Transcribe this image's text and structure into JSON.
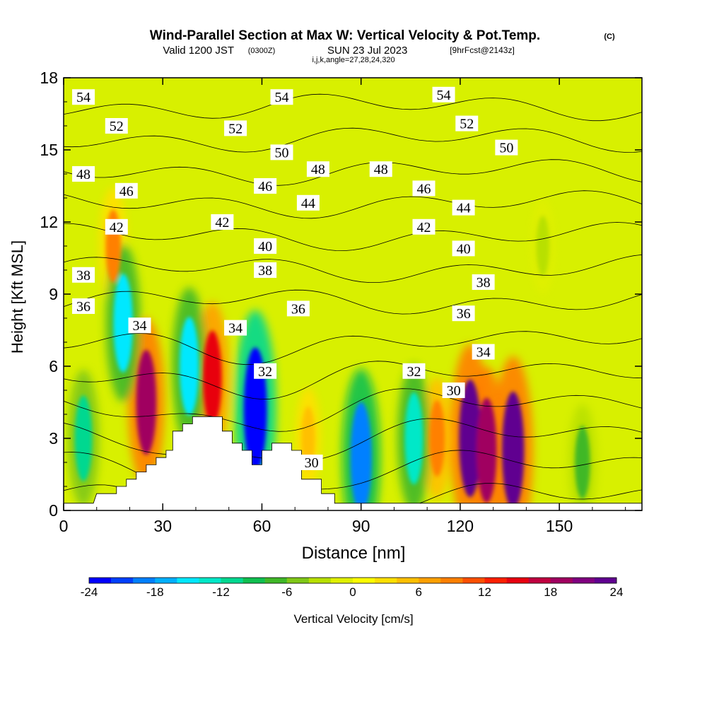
{
  "header": {
    "title": "Wind-Parallel Section at Max W: Vertical Velocity & Pot.Temp.",
    "title_unit": "(C)",
    "valid_prefix": "Valid 1200 JST",
    "valid_utc": "(0300Z)",
    "valid_date": "SUN 23 Jul 2023",
    "forecast": "[9hrFcst@2143z]",
    "indices": "i,j,k,angle=27,28,24,320"
  },
  "chart_data": {
    "type": "heatmap",
    "xlabel": "Distance [nm]",
    "ylabel": "Height [Kft MSL]",
    "xlim": [
      0,
      175
    ],
    "ylim": [
      0,
      18
    ],
    "x_ticks": [
      0,
      30,
      60,
      90,
      120,
      150
    ],
    "x_tick_labels": [
      "0",
      "30",
      "60",
      "90",
      "120",
      "150"
    ],
    "y_ticks": [
      0,
      3,
      6,
      9,
      12,
      15,
      18
    ],
    "y_tick_labels": [
      "0",
      "3",
      "6",
      "9",
      "12",
      "15",
      "18"
    ],
    "colorbar": {
      "label": "Vertical Velocity [cm/s]",
      "min": -24,
      "max": 24,
      "tick_values": [
        -24,
        -18,
        -12,
        -6,
        0,
        6,
        12,
        18,
        24
      ],
      "tick_labels": [
        "-24",
        "-18",
        "-12",
        "-6",
        "0",
        "6",
        "12",
        "18",
        "24"
      ],
      "colors": [
        "#0000ff",
        "#0040ff",
        "#0080ff",
        "#00b0ff",
        "#00e8ff",
        "#00e8c8",
        "#00d890",
        "#10c050",
        "#40b828",
        "#80c818",
        "#b8e000",
        "#e0f000",
        "#ffff00",
        "#ffe000",
        "#ffc000",
        "#ffa000",
        "#ff8000",
        "#ff5000",
        "#ff2000",
        "#e80010",
        "#c00040",
        "#a00060",
        "#800080",
        "#600090"
      ]
    },
    "updrafts_cm_s": [
      {
        "x": 25,
        "y": 4.5,
        "value": 18
      },
      {
        "x": 45,
        "y": 5.5,
        "value": 15
      },
      {
        "x": 15,
        "y": 11,
        "value": 8
      },
      {
        "x": 123,
        "y": 3,
        "value": 22
      },
      {
        "x": 128,
        "y": 2.5,
        "value": 18
      },
      {
        "x": 136,
        "y": 2.5,
        "value": 22
      },
      {
        "x": 113,
        "y": 3,
        "value": 9
      },
      {
        "x": 74,
        "y": 3,
        "value": 5
      }
    ],
    "downdrafts_cm_s": [
      {
        "x": 58,
        "y": 4.2,
        "value": -24
      },
      {
        "x": 90,
        "y": 2.2,
        "value": -20
      },
      {
        "x": 106,
        "y": 3,
        "value": -14
      },
      {
        "x": 38,
        "y": 6,
        "value": -16
      },
      {
        "x": 18,
        "y": 7.8,
        "value": -16
      },
      {
        "x": 6,
        "y": 3,
        "value": -12
      },
      {
        "x": 157,
        "y": 2,
        "value": -8
      },
      {
        "x": 145,
        "y": 11,
        "value": -4
      }
    ],
    "isentrope_labels": [
      {
        "text": "54",
        "x": 6,
        "y": 17.2
      },
      {
        "text": "54",
        "x": 66,
        "y": 17.2
      },
      {
        "text": "54",
        "x": 115,
        "y": 17.3
      },
      {
        "text": "52",
        "x": 16,
        "y": 16.0
      },
      {
        "text": "52",
        "x": 52,
        "y": 15.9
      },
      {
        "text": "52",
        "x": 122,
        "y": 16.1
      },
      {
        "text": "50",
        "x": 66,
        "y": 14.9
      },
      {
        "text": "50",
        "x": 134,
        "y": 15.1
      },
      {
        "text": "48",
        "x": 6,
        "y": 14.0
      },
      {
        "text": "48",
        "x": 77,
        "y": 14.2
      },
      {
        "text": "48",
        "x": 96,
        "y": 14.2
      },
      {
        "text": "46",
        "x": 19,
        "y": 13.3
      },
      {
        "text": "46",
        "x": 61,
        "y": 13.5
      },
      {
        "text": "46",
        "x": 109,
        "y": 13.4
      },
      {
        "text": "44",
        "x": 74,
        "y": 12.8
      },
      {
        "text": "44",
        "x": 121,
        "y": 12.6
      },
      {
        "text": "42",
        "x": 16,
        "y": 11.8
      },
      {
        "text": "42",
        "x": 48,
        "y": 12.0
      },
      {
        "text": "42",
        "x": 109,
        "y": 11.8
      },
      {
        "text": "40",
        "x": 61,
        "y": 11.0
      },
      {
        "text": "40",
        "x": 121,
        "y": 10.9
      },
      {
        "text": "38",
        "x": 6,
        "y": 9.8
      },
      {
        "text": "38",
        "x": 61,
        "y": 10.0
      },
      {
        "text": "38",
        "x": 127,
        "y": 9.5
      },
      {
        "text": "36",
        "x": 6,
        "y": 8.5
      },
      {
        "text": "36",
        "x": 71,
        "y": 8.4
      },
      {
        "text": "36",
        "x": 121,
        "y": 8.2
      },
      {
        "text": "34",
        "x": 23,
        "y": 7.7
      },
      {
        "text": "34",
        "x": 52,
        "y": 7.6
      },
      {
        "text": "34",
        "x": 127,
        "y": 6.6
      },
      {
        "text": "32",
        "x": 61,
        "y": 5.8
      },
      {
        "text": "32",
        "x": 106,
        "y": 5.8
      },
      {
        "text": "30",
        "x": 118,
        "y": 5.0
      },
      {
        "text": "30",
        "x": 75,
        "y": 2.0
      }
    ],
    "isentrope_values": [
      30,
      32,
      34,
      36,
      38,
      40,
      42,
      44,
      46,
      48,
      50,
      52,
      54
    ],
    "terrain_kft": [
      [
        0,
        0.3
      ],
      [
        9,
        0.3
      ],
      [
        10,
        0.7
      ],
      [
        16,
        0.7
      ],
      [
        16,
        1.0
      ],
      [
        19,
        1.0
      ],
      [
        19,
        1.3
      ],
      [
        22,
        1.3
      ],
      [
        22,
        1.6
      ],
      [
        25,
        1.6
      ],
      [
        25,
        1.9
      ],
      [
        28,
        1.9
      ],
      [
        28,
        2.2
      ],
      [
        31,
        2.2
      ],
      [
        31,
        2.5
      ],
      [
        33,
        2.5
      ],
      [
        33,
        3.3
      ],
      [
        36,
        3.3
      ],
      [
        36,
        3.6
      ],
      [
        39,
        3.6
      ],
      [
        39,
        3.9
      ],
      [
        48,
        3.9
      ],
      [
        48,
        3.3
      ],
      [
        51,
        3.3
      ],
      [
        51,
        2.8
      ],
      [
        54,
        2.8
      ],
      [
        54,
        2.5
      ],
      [
        57,
        2.5
      ],
      [
        57,
        1.9
      ],
      [
        60,
        1.9
      ],
      [
        60,
        2.5
      ],
      [
        63,
        2.5
      ],
      [
        63,
        2.8
      ],
      [
        69,
        2.8
      ],
      [
        69,
        2.5
      ],
      [
        72,
        2.5
      ],
      [
        72,
        1.3
      ],
      [
        78,
        1.3
      ],
      [
        78,
        0.7
      ],
      [
        82,
        0.7
      ],
      [
        82,
        0.3
      ],
      [
        175,
        0.3
      ]
    ]
  }
}
